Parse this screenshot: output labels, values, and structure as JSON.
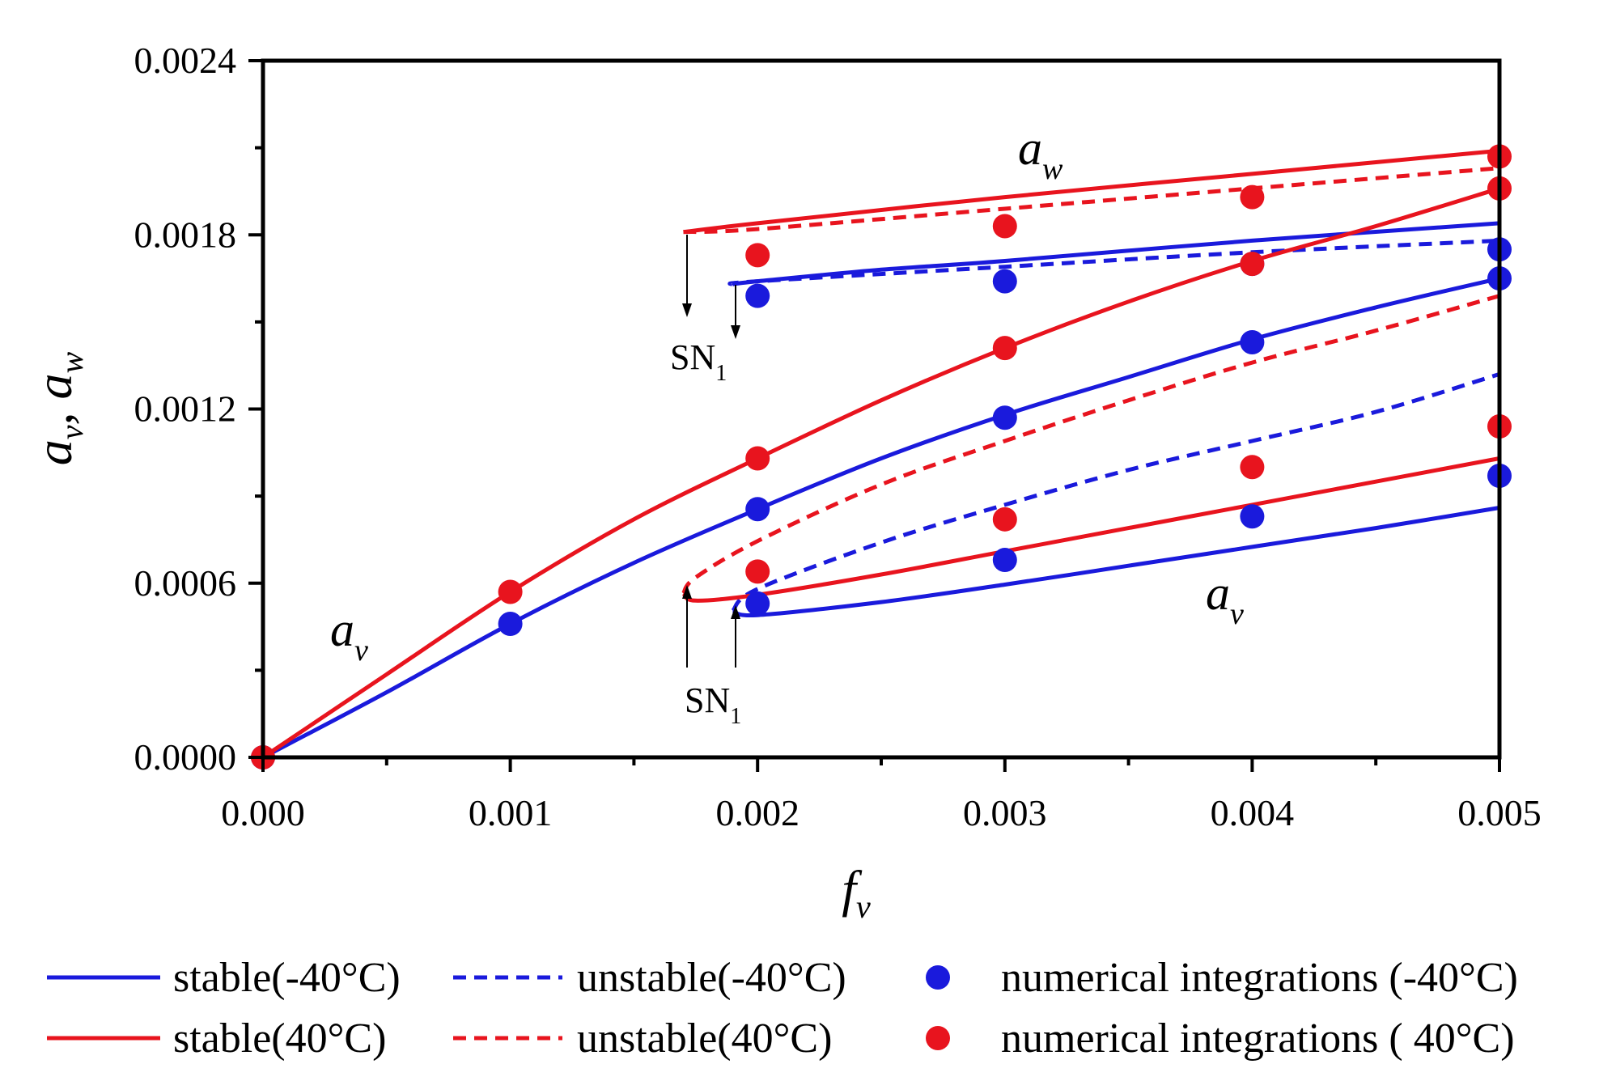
{
  "chart_data": {
    "type": "line",
    "title": "",
    "xlabel": "f",
    "xlabel_sub": "v",
    "ylabel_parts": [
      "a",
      "v",
      ", ",
      "a",
      "w"
    ],
    "xlim": [
      0,
      0.005
    ],
    "ylim": [
      0,
      0.0024
    ],
    "xticks": [
      "0.000",
      "0.001",
      "0.002",
      "0.003",
      "0.004",
      "0.005"
    ],
    "yticks": [
      "0.0000",
      "0.0006",
      "0.0012",
      "0.0018",
      "0.0024"
    ],
    "grid": false,
    "legend_position": "bottom",
    "colors": {
      "cold": "#1a1adc",
      "hot": "#e8141e"
    },
    "annotations": {
      "aw": {
        "main": "a",
        "sub": "w"
      },
      "av_left": {
        "main": "a",
        "sub": "v"
      },
      "av_right": {
        "main": "a",
        "sub": "v"
      },
      "sn_upper": {
        "main": "SN",
        "sub": "1"
      },
      "sn_lower": {
        "main": "SN",
        "sub": "1"
      }
    },
    "series": [
      {
        "name": "stable(-40°C)",
        "color": "#1a1adc",
        "style": "solid",
        "parts": [
          [
            [
              0,
              0
            ],
            [
              0.0005,
              0.000224
            ],
            [
              0.001,
              0.00046
            ],
            [
              0.0015,
              0.00067
            ],
            [
              0.002,
              0.000855
            ],
            [
              0.0025,
              0.00103
            ],
            [
              0.003,
              0.00118
            ],
            [
              0.0035,
              0.00131
            ],
            [
              0.004,
              0.00144
            ],
            [
              0.0045,
              0.00155
            ],
            [
              0.005,
              0.00165
            ]
          ],
          [
            [
              0.0019,
              0.000505
            ],
            [
              0.002,
              0.00049
            ],
            [
              0.0025,
              0.000535
            ],
            [
              0.003,
              0.000595
            ],
            [
              0.0035,
              0.00066
            ],
            [
              0.004,
              0.000725
            ],
            [
              0.0045,
              0.00079
            ],
            [
              0.005,
              0.00086
            ]
          ],
          [
            [
              0.0019,
              0.00163
            ],
            [
              0.002,
              0.00164
            ],
            [
              0.0025,
              0.00168
            ],
            [
              0.003,
              0.00171
            ],
            [
              0.004,
              0.00178
            ],
            [
              0.005,
              0.00184
            ]
          ]
        ]
      },
      {
        "name": "unstable(-40°C)",
        "color": "#1a1adc",
        "style": "dashed",
        "parts": [
          [
            [
              0.0019,
              0.000505
            ],
            [
              0.002,
              0.00058
            ],
            [
              0.0025,
              0.00074
            ],
            [
              0.003,
              0.00087
            ],
            [
              0.0035,
              0.00099
            ],
            [
              0.004,
              0.00109
            ],
            [
              0.0045,
              0.00119
            ],
            [
              0.005,
              0.00132
            ]
          ],
          [
            [
              0.0019,
              0.00163
            ],
            [
              0.002,
              0.00164
            ],
            [
              0.003,
              0.00169
            ],
            [
              0.004,
              0.00174
            ],
            [
              0.005,
              0.00178
            ]
          ]
        ]
      },
      {
        "name": "stable(40°C)",
        "color": "#e8141e",
        "style": "solid",
        "parts": [
          [
            [
              0,
              0
            ],
            [
              0.0005,
              0.000286
            ],
            [
              0.001,
              0.00057
            ],
            [
              0.0015,
              0.00082
            ],
            [
              0.002,
              0.00103
            ],
            [
              0.0025,
              0.00123
            ],
            [
              0.003,
              0.00141
            ],
            [
              0.0035,
              0.00157
            ],
            [
              0.004,
              0.00171
            ],
            [
              0.0045,
              0.00183
            ],
            [
              0.005,
              0.00196
            ]
          ],
          [
            [
              0.0017,
              0.000565
            ],
            [
              0.00175,
              0.00054
            ],
            [
              0.002,
              0.00056
            ],
            [
              0.0025,
              0.00063
            ],
            [
              0.003,
              0.00071
            ],
            [
              0.0035,
              0.00079
            ],
            [
              0.004,
              0.00087
            ],
            [
              0.0045,
              0.00095
            ],
            [
              0.005,
              0.00103
            ]
          ],
          [
            [
              0.0017,
              0.00181
            ],
            [
              0.002,
              0.00184
            ],
            [
              0.003,
              0.00193
            ],
            [
              0.004,
              0.00201
            ],
            [
              0.005,
              0.00209
            ]
          ]
        ]
      },
      {
        "name": "unstable(40°C)",
        "color": "#e8141e",
        "style": "dashed",
        "parts": [
          [
            [
              0.0017,
              0.000565
            ],
            [
              0.00175,
              0.00062
            ],
            [
              0.002,
              0.000745
            ],
            [
              0.0025,
              0.00094
            ],
            [
              0.003,
              0.00109
            ],
            [
              0.0035,
              0.00123
            ],
            [
              0.004,
              0.00136
            ],
            [
              0.0045,
              0.00147
            ],
            [
              0.005,
              0.00159
            ]
          ],
          [
            [
              0.0017,
              0.00181
            ],
            [
              0.002,
              0.00182
            ],
            [
              0.003,
              0.00189
            ],
            [
              0.004,
              0.00196
            ],
            [
              0.005,
              0.00203
            ]
          ]
        ]
      },
      {
        "name": "numerical integrations (-40°C)",
        "color": "#1a1adc",
        "style": "marker",
        "points": [
          [
            0,
            0
          ],
          [
            0.001,
            0.00046
          ],
          [
            0.002,
            0.000855
          ],
          [
            0.002,
            0.00053
          ],
          [
            0.002,
            0.00159
          ],
          [
            0.003,
            0.00117
          ],
          [
            0.003,
            0.00068
          ],
          [
            0.003,
            0.00164
          ],
          [
            0.004,
            0.00143
          ],
          [
            0.004,
            0.00083
          ],
          [
            0.004,
            0.0017
          ],
          [
            0.005,
            0.00165
          ],
          [
            0.005,
            0.00097
          ],
          [
            0.005,
            0.00175
          ]
        ]
      },
      {
        "name": "numerical integrations ( 40°C)",
        "color": "#e8141e",
        "style": "marker",
        "points": [
          [
            0,
            0
          ],
          [
            0.001,
            0.00057
          ],
          [
            0.002,
            0.00103
          ],
          [
            0.002,
            0.00064
          ],
          [
            0.002,
            0.00173
          ],
          [
            0.003,
            0.00141
          ],
          [
            0.003,
            0.00082
          ],
          [
            0.003,
            0.00183
          ],
          [
            0.004,
            0.0017
          ],
          [
            0.004,
            0.001
          ],
          [
            0.004,
            0.00193
          ],
          [
            0.005,
            0.00196
          ],
          [
            0.005,
            0.00114
          ],
          [
            0.005,
            0.00207
          ]
        ]
      }
    ],
    "baseline": {
      "y": 0,
      "color": "#e8141e"
    }
  }
}
